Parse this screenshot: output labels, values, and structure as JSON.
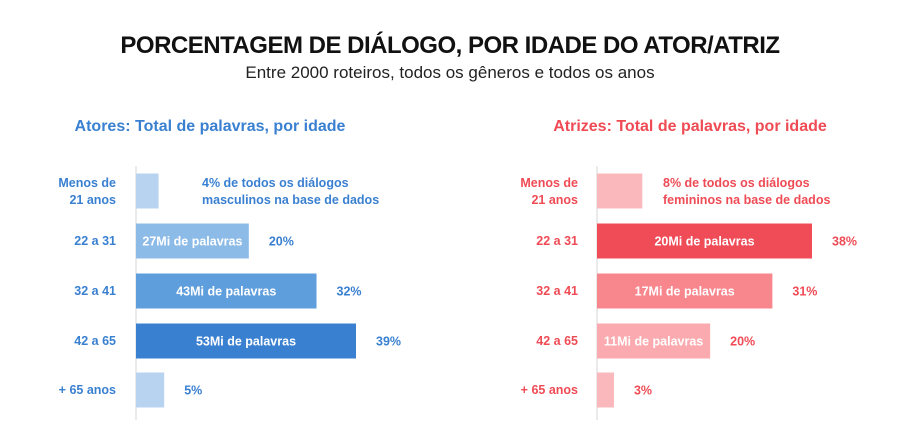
{
  "header": {
    "title": "PORCENTAGEM DE DIÁLOGO, POR IDADE DO ATOR/ATRIZ",
    "subtitle": "Entre 2000 roteiros, todos os gêneros e todos os anos"
  },
  "chart_data": [
    {
      "type": "bar",
      "orientation": "horizontal",
      "title": "Atores: Total de palavras, por idade",
      "unit": "%",
      "xlim": [
        0,
        39
      ],
      "categories": [
        [
          "Menos de",
          "21 anos"
        ],
        [
          "22 a 31"
        ],
        [
          "32 a 41"
        ],
        [
          "42 a 65"
        ],
        [
          "+ 65 anos"
        ]
      ],
      "values": [
        4,
        20,
        32,
        39,
        5
      ],
      "value_labels": [
        "",
        "20%",
        "32%",
        "39%",
        "5%"
      ],
      "inner_labels": [
        "",
        "27Mi de palavras",
        "43Mi de palavras",
        "53Mi de palavras",
        ""
      ],
      "annotation": [
        "4% de todos os diálogos",
        "masculinos na base de dados"
      ],
      "colors": [
        "#b7d3f0",
        "#8dbbe8",
        "#5f9edc",
        "#3a80d1",
        "#b7d3f0"
      ],
      "text_color": "#3a80d1"
    },
    {
      "type": "bar",
      "orientation": "horizontal",
      "title": "Atrizes: Total de palavras, por idade",
      "unit": "%",
      "xlim": [
        0,
        38
      ],
      "categories": [
        [
          "Menos de",
          "21 anos"
        ],
        [
          "22 a 31"
        ],
        [
          "32 a 41"
        ],
        [
          "42 a 65"
        ],
        [
          "+ 65 anos"
        ]
      ],
      "values": [
        8,
        38,
        31,
        20,
        3
      ],
      "value_labels": [
        "",
        "38%",
        "31%",
        "20%",
        "3%"
      ],
      "inner_labels": [
        "",
        "20Mi de palavras",
        "17Mi de palavras",
        "11Mi de palavras",
        ""
      ],
      "annotation": [
        "8% de todos os diálogos",
        "femininos na base de dados"
      ],
      "colors": [
        "#fbb8bc",
        "#f04c58",
        "#f8868d",
        "#fbabaf",
        "#fbb8bc"
      ],
      "text_color": "#ef4b55"
    }
  ]
}
